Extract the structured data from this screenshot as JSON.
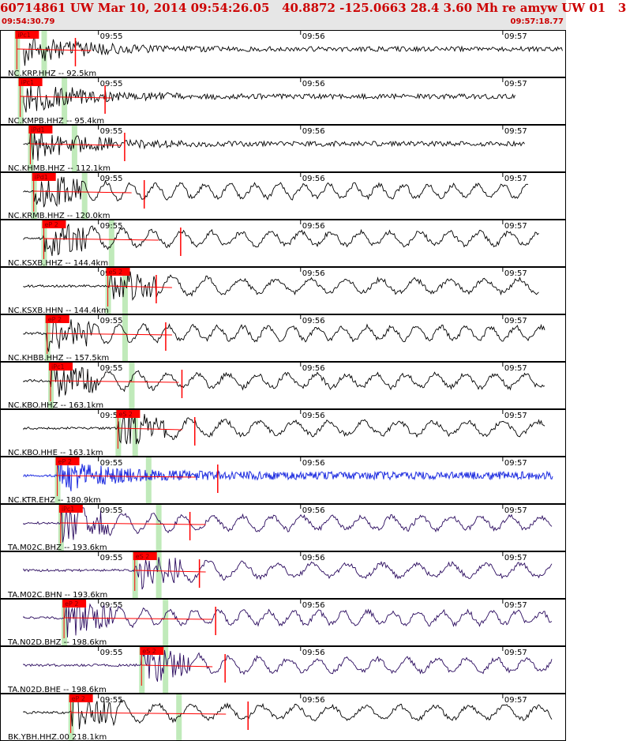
{
  "event_title": "60714861 UW Mar 10, 2014 09:54:26.05   40.8872 -125.0663 28.4 3.60 Mh re amyw UW 01   3",
  "window_start": "09:54:30.79",
  "window_end": "09:57:18.77",
  "colors": {
    "header_bg": "#e6e6e6",
    "header_text": "#cc0000",
    "pick_flag": "#ff0000",
    "pick_window": "#b9e8b3",
    "trace_black": "#000000",
    "trace_blue": "#1e2de0",
    "trace_purple": "#2a0a5e"
  },
  "chart_data": {
    "type": "line",
    "title": "",
    "xlabel": "",
    "ylabel": "",
    "x_unit": "seconds after window start (09:54:30.79)",
    "x_range": [
      0,
      167.98
    ],
    "time_ticks": [
      {
        "label": "09:55",
        "t": 29.21
      },
      {
        "label": "09:56",
        "t": 89.21
      },
      {
        "label": "09:57",
        "t": 149.21
      }
    ],
    "series": [
      {
        "name": "NC.KRP.HHZ -- 92.5km",
        "color": "#000000",
        "pick": "iPc1",
        "pick_t": 5,
        "phase_t": 13,
        "style": 0,
        "end_t": 167
      },
      {
        "name": "NC.KMPB.HHZ -- 95.4km",
        "color": "#000000",
        "pick": "iPc1",
        "pick_t": 6,
        "phase_t": 19,
        "style": 0,
        "end_t": 153
      },
      {
        "name": "NC.KHMB.HHZ -- 112.1km",
        "color": "#000000",
        "pick": "iPd1",
        "pick_t": 9,
        "phase_t": 22,
        "style": 0,
        "end_t": 156
      },
      {
        "name": "NC.KRMB.HHZ -- 120.0km",
        "color": "#000000",
        "pick": "iPd1",
        "pick_t": 10,
        "phase_t": 25,
        "style": 1,
        "end_t": 157
      },
      {
        "name": "NC.KSXB.HHZ -- 144.4km",
        "color": "#000000",
        "pick": "eP 2",
        "pick_t": 13,
        "phase_t": 33,
        "style": 1,
        "end_t": 160
      },
      {
        "name": "NC.KSXB.HHN -- 144.4km",
        "color": "#000000",
        "pick": "eS 2",
        "pick_t": 32,
        "phase_t": 37,
        "style": 1,
        "end_t": 160
      },
      {
        "name": "NC.KHBB.HHZ -- 157.5km",
        "color": "#000000",
        "pick": "eP 2",
        "pick_t": 14,
        "phase_t": 37,
        "style": 1,
        "end_t": 162
      },
      {
        "name": "NC.KBO.HHZ -- 163.1km",
        "color": "#000000",
        "pick": "iPc1",
        "pick_t": 15,
        "phase_t": 39,
        "style": 1,
        "end_t": 162
      },
      {
        "name": "NC.KBO.HHE -- 163.1km",
        "color": "#000000",
        "pick": "eS 2",
        "pick_t": 35,
        "phase_t": 40,
        "style": 1,
        "end_t": 162
      },
      {
        "name": "NC.KTR.EHZ -- 180.9km",
        "color": "#1e2de0",
        "pick": "eP 2",
        "pick_t": 17,
        "phase_t": 44,
        "style": 2,
        "end_t": 164
      },
      {
        "name": "TA.M02C.BHZ -- 193.6km",
        "color": "#2a0a5e",
        "pick": "iPc1",
        "pick_t": 18,
        "phase_t": 47,
        "style": 1,
        "end_t": 164
      },
      {
        "name": "TA.M02C.BHN -- 193.6km",
        "color": "#2a0a5e",
        "pick": "eS 2",
        "pick_t": 40,
        "phase_t": 47,
        "style": 1,
        "end_t": 164
      },
      {
        "name": "TA.N02D.BHZ -- 198.6km",
        "color": "#2a0a5e",
        "pick": "eP 2",
        "pick_t": 19,
        "phase_t": 49,
        "style": 1,
        "end_t": 164
      },
      {
        "name": "TA.N02D.BHE -- 198.6km",
        "color": "#2a0a5e",
        "pick": "eS 2",
        "pick_t": 42,
        "phase_t": 49,
        "style": 1,
        "end_t": 164
      },
      {
        "name": "BK.YBH.HHZ.00 218.1km",
        "color": "#000000",
        "pick": "eP 2",
        "pick_t": 21,
        "phase_t": 53,
        "style": 1,
        "end_t": 164
      }
    ]
  }
}
